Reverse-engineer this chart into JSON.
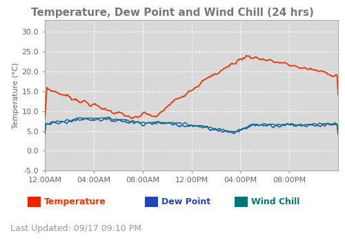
{
  "title": "Temperature, Dew Point and Wind Chill (24 hrs)",
  "ylabel": "Temperature (°C)",
  "ylim": [
    -5.0,
    33.0
  ],
  "yticks": [
    -5.0,
    0.0,
    5.0,
    10.0,
    15.0,
    20.0,
    25.0,
    30.0
  ],
  "xtick_labels": [
    "12:00AM",
    "04:00AM",
    "08:00AM",
    "12:00PM",
    "04:00PM",
    "08:00PM"
  ],
  "xtick_positions": [
    0,
    4,
    8,
    12,
    16,
    20
  ],
  "bg_color": "#d9d9d9",
  "fig_bg_color": "#ffffff",
  "temp_color": "#ee3300",
  "dew_color": "#2244bb",
  "wind_color": "#007777",
  "legend_temp_color": "#ee2200",
  "legend_dew_color": "#2244bb",
  "legend_wind_color": "#007777",
  "last_updated": "Last Updated: 09/17 09:10 PM",
  "title_color": "#777777",
  "tick_color": "#666666",
  "grid_color": "#ffffff"
}
